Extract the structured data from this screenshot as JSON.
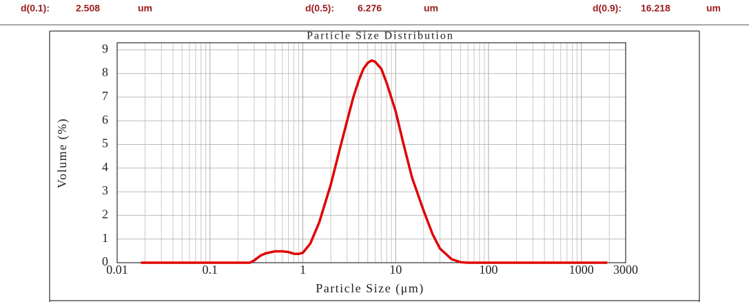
{
  "header": {
    "items": [
      {
        "label": "d(0.1):",
        "value": "2.508",
        "unit": "um"
      },
      {
        "label": "d(0.5):",
        "value": "6.276",
        "unit": "um"
      },
      {
        "label": "d(0.9):",
        "value": "16.218",
        "unit": "um"
      }
    ]
  },
  "chart_data": {
    "type": "line",
    "title": "Particle Size Distribution",
    "x_label": "Particle Size (μm)",
    "y_label": "Volume (%)",
    "x_log": true,
    "grid": true,
    "xlim": [
      0.01,
      3000
    ],
    "xticks": [
      0.01,
      0.1,
      1,
      10,
      100,
      1000,
      3000
    ],
    "x_minor_ticks": [
      0.02,
      0.03,
      0.04,
      0.05,
      0.06,
      0.07,
      0.08,
      0.09,
      0.2,
      0.3,
      0.4,
      0.5,
      0.6,
      0.7,
      0.8,
      0.9,
      2,
      3,
      4,
      5,
      6,
      7,
      8,
      9,
      20,
      30,
      40,
      50,
      60,
      70,
      80,
      90,
      200,
      300,
      400,
      500,
      600,
      700,
      800,
      900,
      2000
    ],
    "ylim": [
      0,
      9.3
    ],
    "yticks": [
      0,
      1,
      2,
      3,
      4,
      5,
      6,
      7,
      8,
      9
    ],
    "series": [
      {
        "color": "#e00000",
        "x": [
          0.018,
          0.1,
          0.27,
          0.3,
          0.35,
          0.4,
          0.5,
          0.6,
          0.7,
          0.8,
          0.9,
          1,
          1.2,
          1.5,
          2,
          2.5,
          3,
          3.5,
          4,
          4.5,
          5,
          5.5,
          6,
          7,
          8,
          10,
          12,
          15,
          20,
          25,
          30,
          40,
          50,
          60,
          100,
          1000,
          1900
        ],
        "values": [
          0,
          0,
          0,
          0.1,
          0.3,
          0.4,
          0.48,
          0.48,
          0.45,
          0.38,
          0.37,
          0.42,
          0.8,
          1.7,
          3.3,
          4.8,
          6.0,
          7.0,
          7.7,
          8.2,
          8.45,
          8.55,
          8.5,
          8.2,
          7.6,
          6.4,
          5.1,
          3.6,
          2.2,
          1.2,
          0.6,
          0.15,
          0.02,
          0,
          0,
          0,
          0
        ]
      }
    ]
  }
}
